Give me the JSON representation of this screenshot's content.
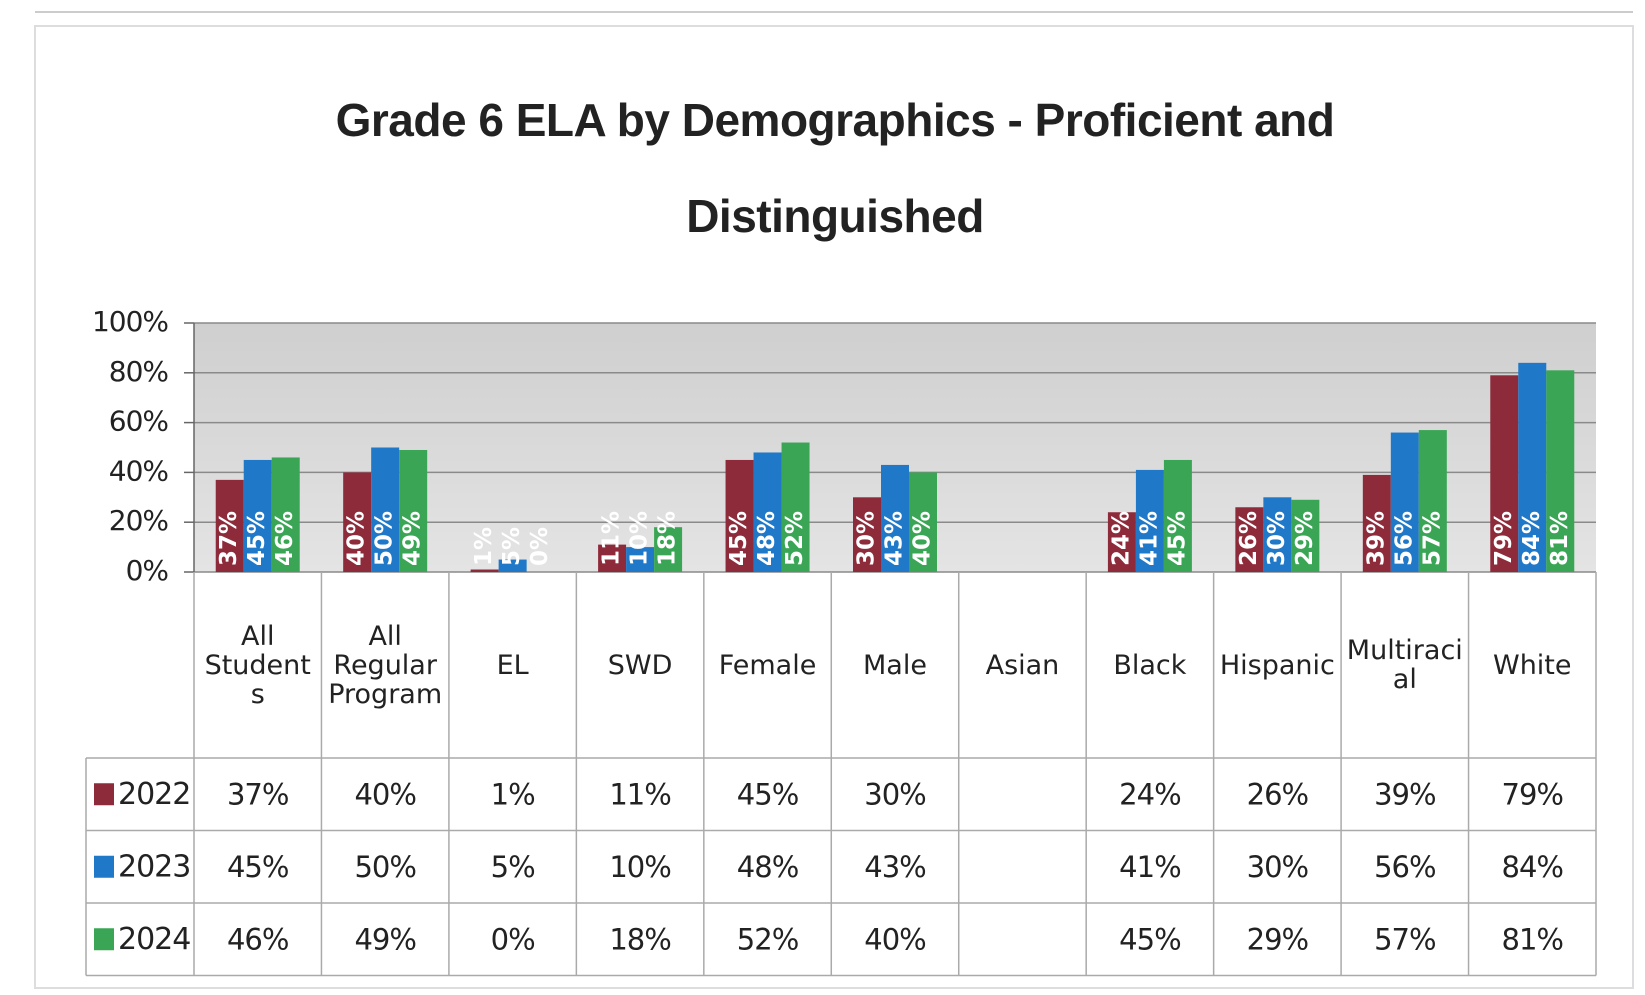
{
  "chart_data": {
    "type": "bar",
    "title": "Grade 6 ELA by Demographics - Proficient and Distinguished",
    "categories": [
      "All Students",
      "All Regular Program",
      "EL",
      "SWD",
      "Female",
      "Male",
      "Asian",
      "Black",
      "Hispanic",
      "Multiracial",
      "White"
    ],
    "series": [
      {
        "name": "2022",
        "color": "#8e2b3b",
        "values": [
          37,
          40,
          1,
          11,
          45,
          30,
          null,
          24,
          26,
          39,
          79
        ],
        "value_labels": [
          "37%",
          "40%",
          "1%",
          "11%",
          "45%",
          "30%",
          null,
          "24%",
          "26%",
          "39%",
          "79%"
        ]
      },
      {
        "name": "2023",
        "color": "#1f78c8",
        "values": [
          45,
          50,
          5,
          10,
          48,
          43,
          null,
          41,
          30,
          56,
          84
        ],
        "value_labels": [
          "45%",
          "50%",
          "5%",
          "10%",
          "48%",
          "43%",
          null,
          "41%",
          "30%",
          "56%",
          "84%"
        ]
      },
      {
        "name": "2024",
        "color": "#3aa655",
        "values": [
          46,
          49,
          0,
          18,
          52,
          40,
          null,
          45,
          29,
          57,
          81
        ],
        "value_labels": [
          "46%",
          "49%",
          "0%",
          "18%",
          "52%",
          "40%",
          null,
          "45%",
          "29%",
          "57%",
          "81%"
        ]
      }
    ],
    "ylim": [
      0,
      100
    ],
    "yticks": [
      {
        "value": 0,
        "label": "0%"
      },
      {
        "value": 20,
        "label": "20%"
      },
      {
        "value": 40,
        "label": "40%"
      },
      {
        "value": 60,
        "label": "60%"
      },
      {
        "value": 80,
        "label": "80%"
      },
      {
        "value": 100,
        "label": "100%"
      }
    ],
    "grid": true
  }
}
